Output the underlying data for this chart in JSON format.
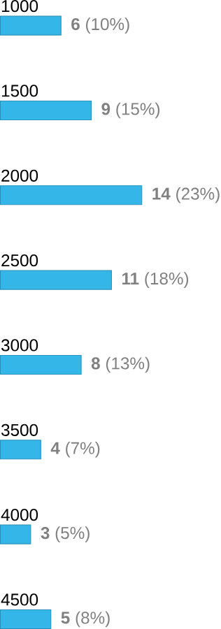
{
  "chart_data": {
    "type": "bar",
    "orientation": "horizontal",
    "categories": [
      "1000",
      "1500",
      "2000",
      "2500",
      "3000",
      "3500",
      "4000",
      "4500"
    ],
    "values": [
      6,
      9,
      14,
      11,
      8,
      4,
      3,
      5
    ],
    "value_labels": [
      "**6** (10%)",
      "**9** (15%)",
      "**14** (23%)",
      "**11** (18%)",
      "**8** (13%)",
      "**4** (7%)",
      "**3** (5%)",
      "**5** (8%)"
    ],
    "color": "#35b6e8"
  }
}
